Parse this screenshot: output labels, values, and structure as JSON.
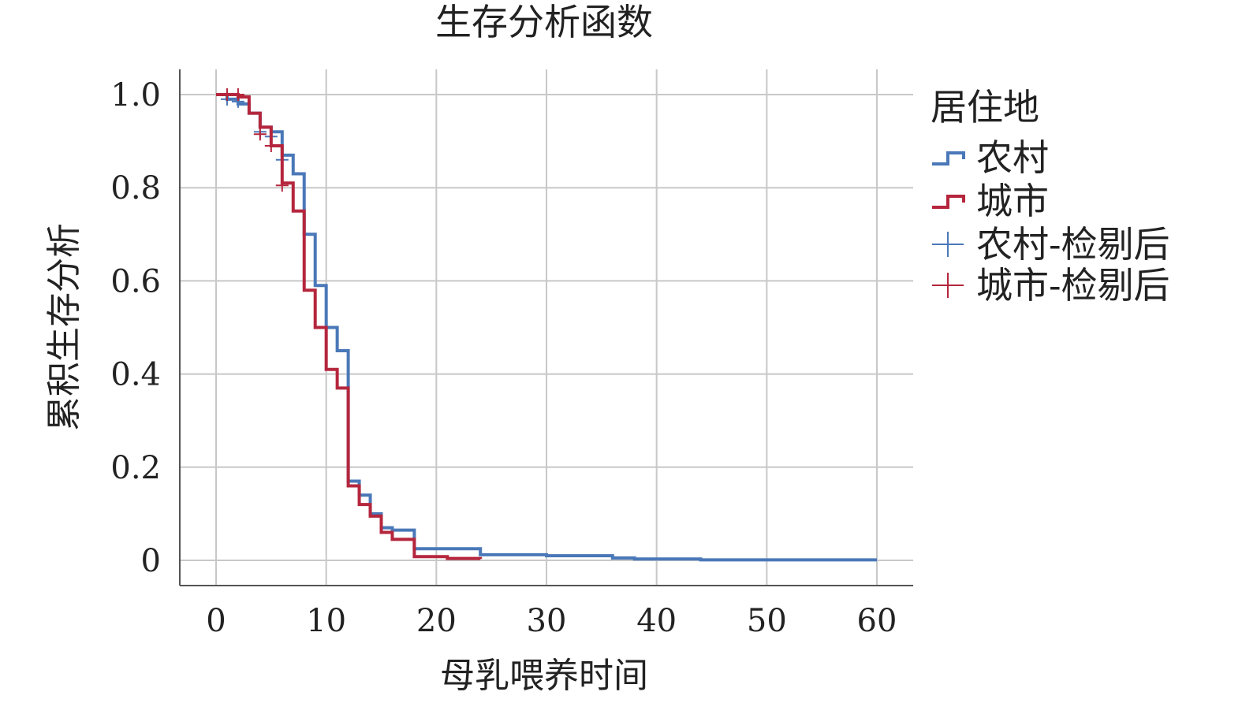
{
  "chart_data": {
    "type": "line",
    "title": "生存分析函数",
    "xlabel": "母乳喂养时间",
    "ylabel": "累积生存分析",
    "xlim": [
      0,
      60
    ],
    "ylim": [
      0,
      1.0
    ],
    "x_ticks": [
      0,
      10,
      20,
      30,
      40,
      50,
      60
    ],
    "y_ticks": [
      0,
      0.2,
      0.4,
      0.6,
      0.8,
      1.0
    ],
    "x_tick_labels": [
      "0",
      "10",
      "20",
      "30",
      "40",
      "50",
      "60"
    ],
    "y_tick_labels": [
      "0",
      "0.2",
      "0.4",
      "0.6",
      "0.8",
      "1.0"
    ],
    "grid": true,
    "legend": {
      "title": "居住地",
      "placement": "right",
      "entries": [
        "农村",
        "城市",
        "农村-检剔后",
        "城市-检剔后"
      ]
    },
    "series": [
      {
        "name": "农村",
        "color": "#4a78b8",
        "steps": [
          [
            0,
            1.0
          ],
          [
            1,
            0.99
          ],
          [
            2,
            0.98
          ],
          [
            3,
            0.96
          ],
          [
            4,
            0.93
          ],
          [
            5,
            0.92
          ],
          [
            6,
            0.87
          ],
          [
            7,
            0.83
          ],
          [
            8,
            0.7
          ],
          [
            9,
            0.59
          ],
          [
            10,
            0.5
          ],
          [
            11,
            0.45
          ],
          [
            12,
            0.17
          ],
          [
            13,
            0.14
          ],
          [
            14,
            0.1
          ],
          [
            15,
            0.07
          ],
          [
            16,
            0.065
          ],
          [
            18,
            0.025
          ],
          [
            24,
            0.012
          ],
          [
            30,
            0.01
          ],
          [
            36,
            0.005
          ],
          [
            38,
            0.003
          ],
          [
            44,
            0.001
          ],
          [
            60,
            0.001
          ]
        ],
        "censored": [
          [
            1,
            0.99
          ],
          [
            2,
            0.985
          ],
          [
            4,
            0.92
          ],
          [
            5,
            0.91
          ],
          [
            6,
            0.86
          ]
        ]
      },
      {
        "name": "城市",
        "color": "#b5263d",
        "steps": [
          [
            0,
            1.0
          ],
          [
            1,
            1.0
          ],
          [
            2,
            0.995
          ],
          [
            3,
            0.96
          ],
          [
            4,
            0.93
          ],
          [
            5,
            0.89
          ],
          [
            6,
            0.81
          ],
          [
            7,
            0.75
          ],
          [
            8,
            0.58
          ],
          [
            9,
            0.5
          ],
          [
            10,
            0.41
          ],
          [
            11,
            0.37
          ],
          [
            12,
            0.16
          ],
          [
            13,
            0.12
          ],
          [
            14,
            0.095
          ],
          [
            15,
            0.06
          ],
          [
            16,
            0.045
          ],
          [
            18,
            0.008
          ],
          [
            21,
            0.004
          ],
          [
            24,
            0.003
          ]
        ],
        "censored": [
          [
            1,
            1.0
          ],
          [
            2,
            1.0
          ],
          [
            4,
            0.915
          ],
          [
            5,
            0.89
          ],
          [
            6,
            0.805
          ]
        ]
      }
    ]
  }
}
